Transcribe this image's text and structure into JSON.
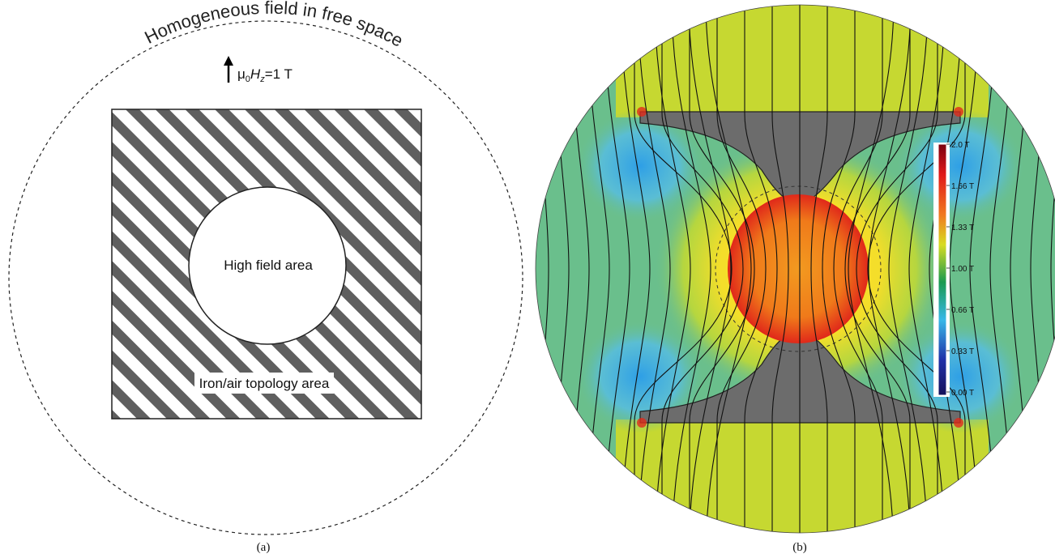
{
  "panel_a": {
    "arc_label": "Homogeneous field in free space",
    "field_symbol_mu": "μ",
    "field_symbol_sub0": "0",
    "field_symbol_H": "H",
    "field_symbol_subz": "z",
    "field_value": "=1 T",
    "center_label": "High field area",
    "topology_label": "Iron/air topology area",
    "caption": "(a)"
  },
  "panel_b": {
    "colorbar_ticks": [
      "2.0 T",
      "1.66 T",
      "1.33 T",
      "1.00 T",
      "0.66 T",
      "0.33 T",
      "0.00 T"
    ],
    "colorbar_range": [
      0,
      2.0
    ],
    "colorbar_colors": [
      "#7a0010",
      "#e01818",
      "#f07820",
      "#d8dc20",
      "#1a9a50",
      "#38b8e8",
      "#2030a8",
      "#14105a"
    ],
    "field_colors": {
      "free_space": "#6abf8c",
      "pole_face": "#c6d831",
      "weak_corner": "#4cb6e8",
      "high_center": "#f08a1c",
      "high_edge": "#e12a1a",
      "halo": "#f4de2a",
      "iron": "#6c6c6c"
    },
    "caption": "(b)"
  }
}
